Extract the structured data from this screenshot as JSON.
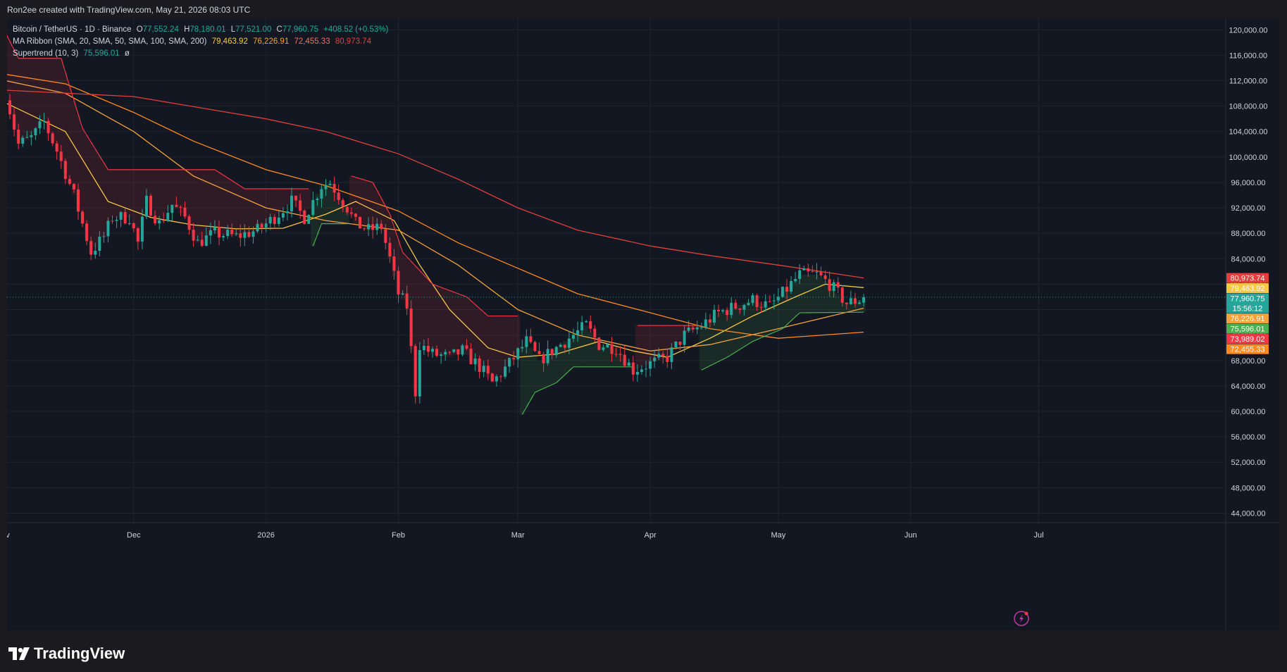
{
  "header": {
    "credit": "Ron2ee created with TradingView.com, May 21, 2026 08:03 UTC"
  },
  "legend": {
    "symbol": "Bitcoin / TetherUS · 1D · Binance",
    "ohlc": {
      "o_label": "O",
      "o": "77,552.24",
      "h_label": "H",
      "h": "78,180.01",
      "l_label": "L",
      "l": "77,521.00",
      "c_label": "C",
      "c": "77,960.75",
      "change": "+408.52 (+0.53%)"
    },
    "ma_ribbon": {
      "label": "MA Ribbon (SMA, 20, SMA, 50, SMA, 100, SMA, 200)",
      "v1": "79,463.92",
      "v2": "76,226.91",
      "v3": "72,455.33",
      "v4": "80,973.74"
    },
    "supertrend": {
      "label": "Supertrend (10, 3)",
      "value": "75,596.01",
      "symbol": "ø"
    }
  },
  "footer": {
    "brand": "TradingView"
  },
  "colors": {
    "up": "#26a69a",
    "down": "#f23645",
    "ma20": "#f7c744",
    "ma50": "#f2a13b",
    "ma100": "#ff8a1f",
    "ma200": "#e0403d",
    "st_up": "#4caf50",
    "st_down": "#f23645"
  },
  "chart_data": {
    "type": "candlestick",
    "y_ticks": [
      "120,000.00",
      "116,000.00",
      "112,000.00",
      "108,000.00",
      "104,000.00",
      "100,000.00",
      "96,000.00",
      "92,000.00",
      "88,000.00",
      "84,000.00",
      "80,000.00",
      "76,000.00",
      "72,000.00",
      "68,000.00",
      "64,000.00",
      "60,000.00",
      "56,000.00",
      "52,000.00",
      "48,000.00",
      "44,000.00"
    ],
    "ylim": [
      42500,
      121800
    ],
    "x_labels": [
      {
        "label": "ov",
        "date": "2025-11-01"
      },
      {
        "label": "Dec",
        "date": "2025-12-01"
      },
      {
        "label": "2026",
        "date": "2026-01-01"
      },
      {
        "label": "Feb",
        "date": "2026-02-01"
      },
      {
        "label": "Mar",
        "date": "2026-03-01"
      },
      {
        "label": "Apr",
        "date": "2026-04-01"
      },
      {
        "label": "May",
        "date": "2026-05-01"
      },
      {
        "label": "Jun",
        "date": "2026-06-01"
      },
      {
        "label": "Jul",
        "date": "2026-07-01"
      }
    ],
    "last_price": 77960.75,
    "countdown": "15:56:12",
    "price_tags": [
      {
        "value": "80,973.74",
        "y": 80973.74,
        "color": "#e0403d"
      },
      {
        "value": "79,463.92",
        "y": 79463.92,
        "color": "#f7c744"
      },
      {
        "value": "77,960.75",
        "y": 77960.75,
        "color": "#26a69a"
      },
      {
        "value": "76,226.91",
        "y": 76226.91,
        "color": "#f2a13b"
      },
      {
        "value": "75,596.01",
        "y": 75596.01,
        "color": "#4caf50"
      },
      {
        "value": "73,989.02",
        "y": 73989.02,
        "color": "#f23645"
      },
      {
        "value": "72,455.33",
        "y": 72455.33,
        "color": "#ff8a1f"
      }
    ],
    "price_anchors": [
      [
        "2025-11-01",
        110000
      ],
      [
        "2025-11-04",
        102000
      ],
      [
        "2025-11-07",
        103000
      ],
      [
        "2025-11-10",
        105500
      ],
      [
        "2025-11-13",
        101000
      ],
      [
        "2025-11-17",
        94000
      ],
      [
        "2025-11-21",
        85000
      ],
      [
        "2025-11-24",
        87500
      ],
      [
        "2025-11-26",
        90500
      ],
      [
        "2025-11-30",
        90500
      ],
      [
        "2025-12-02",
        86500
      ],
      [
        "2025-12-04",
        93000
      ],
      [
        "2025-12-07",
        89500
      ],
      [
        "2025-12-10",
        92500
      ],
      [
        "2025-12-13",
        90500
      ],
      [
        "2025-12-16",
        86500
      ],
      [
        "2025-12-20",
        88000
      ],
      [
        "2025-12-25",
        87500
      ],
      [
        "2025-12-30",
        88500
      ],
      [
        "2026-01-03",
        90500
      ],
      [
        "2026-01-07",
        93000
      ],
      [
        "2026-01-10",
        90500
      ],
      [
        "2026-01-14",
        95500
      ],
      [
        "2026-01-16",
        96000
      ],
      [
        "2026-01-20",
        92000
      ],
      [
        "2026-01-22",
        89500
      ],
      [
        "2026-01-25",
        88500
      ],
      [
        "2026-01-28",
        89000
      ],
      [
        "2026-01-30",
        84000
      ],
      [
        "2026-02-01",
        78500
      ],
      [
        "2026-02-03",
        76500
      ],
      [
        "2026-02-05",
        63000
      ],
      [
        "2026-02-06",
        70500
      ],
      [
        "2026-02-09",
        69000
      ],
      [
        "2026-02-13",
        68500
      ],
      [
        "2026-02-16",
        69500
      ],
      [
        "2026-02-20",
        67000
      ],
      [
        "2026-02-23",
        64500
      ],
      [
        "2026-02-27",
        67500
      ],
      [
        "2026-03-03",
        71000
      ],
      [
        "2026-03-06",
        68000
      ],
      [
        "2026-03-10",
        70000
      ],
      [
        "2026-03-14",
        72000
      ],
      [
        "2026-03-17",
        73500
      ],
      [
        "2026-03-20",
        70500
      ],
      [
        "2026-03-24",
        70000
      ],
      [
        "2026-03-28",
        66500
      ],
      [
        "2026-04-01",
        67500
      ],
      [
        "2026-04-05",
        68500
      ],
      [
        "2026-04-09",
        72000
      ],
      [
        "2026-04-13",
        73500
      ],
      [
        "2026-04-17",
        75500
      ],
      [
        "2026-04-21",
        76500
      ],
      [
        "2026-04-25",
        77500
      ],
      [
        "2026-04-29",
        76500
      ],
      [
        "2026-05-02",
        78500
      ],
      [
        "2026-05-06",
        81500
      ],
      [
        "2026-05-10",
        81500
      ],
      [
        "2026-05-13",
        80000
      ],
      [
        "2026-05-17",
        77000
      ],
      [
        "2026-05-20",
        77500
      ],
      [
        "2026-05-21",
        77960
      ]
    ],
    "ma20": [
      [
        "2025-11-01",
        108500
      ],
      [
        "2025-11-15",
        104000
      ],
      [
        "2025-11-25",
        93000
      ],
      [
        "2025-12-05",
        90500
      ],
      [
        "2025-12-15",
        89300
      ],
      [
        "2025-12-25",
        88700
      ],
      [
        "2026-01-05",
        88800
      ],
      [
        "2026-01-15",
        91000
      ],
      [
        "2026-01-22",
        93000
      ],
      [
        "2026-01-31",
        90000
      ],
      [
        "2026-02-06",
        83000
      ],
      [
        "2026-02-13",
        76000
      ],
      [
        "2026-02-22",
        70000
      ],
      [
        "2026-03-01",
        68500
      ],
      [
        "2026-03-10",
        69000
      ],
      [
        "2026-03-20",
        71000
      ],
      [
        "2026-03-28",
        69500
      ],
      [
        "2026-04-05",
        68500
      ],
      [
        "2026-04-15",
        71500
      ],
      [
        "2026-04-25",
        75000
      ],
      [
        "2026-05-05",
        78000
      ],
      [
        "2026-05-12",
        80000
      ],
      [
        "2026-05-21",
        79464
      ]
    ],
    "ma50": [
      [
        "2025-11-01",
        112000
      ],
      [
        "2025-11-15",
        110000
      ],
      [
        "2025-12-01",
        104000
      ],
      [
        "2025-12-15",
        97000
      ],
      [
        "2026-01-01",
        92000
      ],
      [
        "2026-01-15",
        90000
      ],
      [
        "2026-02-01",
        88500
      ],
      [
        "2026-02-15",
        83000
      ],
      [
        "2026-03-01",
        76000
      ],
      [
        "2026-03-15",
        72000
      ],
      [
        "2026-04-01",
        69500
      ],
      [
        "2026-04-15",
        70500
      ],
      [
        "2026-05-01",
        73000
      ],
      [
        "2026-05-21",
        76227
      ]
    ],
    "ma100": [
      [
        "2025-11-01",
        113000
      ],
      [
        "2025-11-15",
        111500
      ],
      [
        "2025-12-01",
        107000
      ],
      [
        "2025-12-15",
        102500
      ],
      [
        "2026-01-01",
        98000
      ],
      [
        "2026-01-15",
        95500
      ],
      [
        "2026-02-01",
        91500
      ],
      [
        "2026-02-15",
        86500
      ],
      [
        "2026-03-01",
        82500
      ],
      [
        "2026-03-15",
        78500
      ],
      [
        "2026-04-01",
        75500
      ],
      [
        "2026-04-15",
        73000
      ],
      [
        "2026-05-01",
        71500
      ],
      [
        "2026-05-21",
        72455
      ]
    ],
    "ma200": [
      [
        "2025-11-01",
        110500
      ],
      [
        "2025-12-01",
        109500
      ],
      [
        "2026-01-01",
        106000
      ],
      [
        "2026-01-15",
        104000
      ],
      [
        "2026-02-01",
        100500
      ],
      [
        "2026-02-15",
        96500
      ],
      [
        "2026-03-01",
        92000
      ],
      [
        "2026-03-15",
        88500
      ],
      [
        "2026-04-01",
        86000
      ],
      [
        "2026-04-15",
        84500
      ],
      [
        "2026-05-01",
        83000
      ],
      [
        "2026-05-21",
        80974
      ]
    ],
    "supertrend": [
      [
        "2025-11-01",
        119500,
        "down"
      ],
      [
        "2025-11-04",
        115500,
        "down"
      ],
      [
        "2025-11-14",
        115500,
        "down"
      ],
      [
        "2025-11-19",
        104500,
        "down"
      ],
      [
        "2025-11-25",
        98000,
        "down"
      ],
      [
        "2025-12-20",
        98000,
        "down"
      ],
      [
        "2025-12-27",
        95000,
        "down"
      ],
      [
        "2026-01-11",
        95000,
        "down"
      ],
      [
        "2026-01-12",
        86000,
        "up"
      ],
      [
        "2026-01-14",
        89500,
        "up"
      ],
      [
        "2026-01-20",
        89500,
        "up"
      ],
      [
        "2026-01-21",
        97000,
        "down"
      ],
      [
        "2026-01-26",
        96000,
        "down"
      ],
      [
        "2026-01-30",
        91000,
        "down"
      ],
      [
        "2026-02-02",
        85000,
        "down"
      ],
      [
        "2026-02-09",
        80000,
        "down"
      ],
      [
        "2026-02-17",
        78000,
        "down"
      ],
      [
        "2026-02-22",
        75000,
        "down"
      ],
      [
        "2026-03-01",
        75000,
        "down"
      ],
      [
        "2026-03-02",
        59500,
        "up"
      ],
      [
        "2026-03-05",
        63000,
        "up"
      ],
      [
        "2026-03-10",
        64500,
        "up"
      ],
      [
        "2026-03-14",
        67000,
        "up"
      ],
      [
        "2026-03-28",
        67000,
        "up"
      ],
      [
        "2026-03-29",
        73500,
        "down"
      ],
      [
        "2026-04-12",
        73500,
        "down"
      ],
      [
        "2026-04-13",
        66500,
        "up"
      ],
      [
        "2026-04-19",
        68500,
        "up"
      ],
      [
        "2026-04-25",
        71000,
        "up"
      ],
      [
        "2026-05-02",
        73000,
        "up"
      ],
      [
        "2026-05-06",
        75500,
        "up"
      ],
      [
        "2026-05-21",
        75596,
        "up"
      ]
    ]
  }
}
